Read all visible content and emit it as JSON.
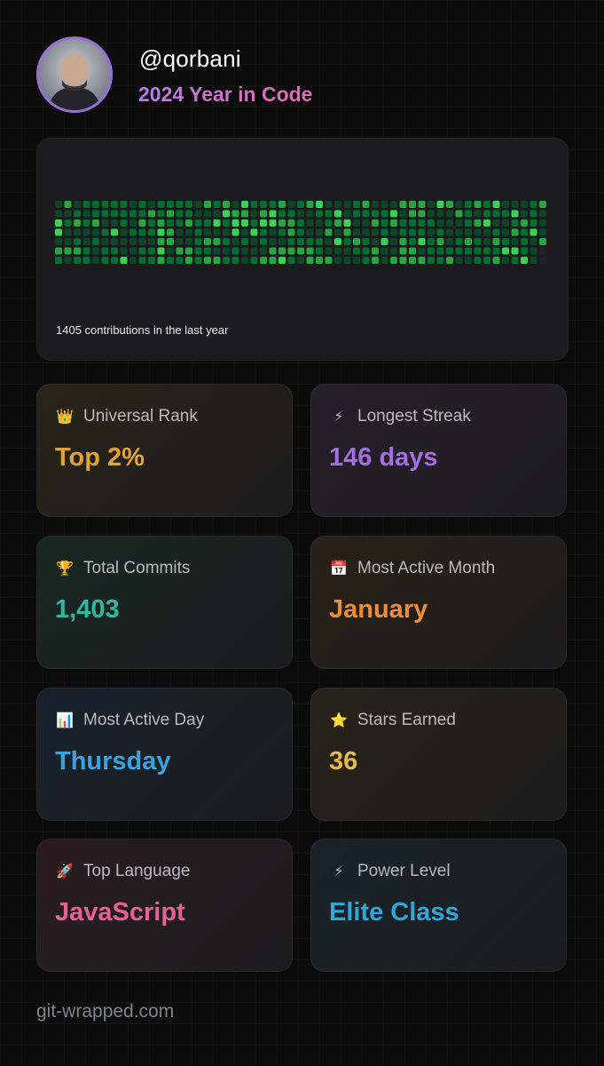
{
  "header": {
    "username": "@qorbani",
    "subtitle": "2024 Year in Code"
  },
  "contributions": {
    "summary": "1405 contributions in the last year",
    "accent_colors": [
      "#0e4429",
      "#006d32",
      "#26a641",
      "#39d353"
    ]
  },
  "stats": [
    {
      "id": "universal-rank",
      "icon": "crown-icon",
      "glyph": "👑",
      "title": "Universal Rank",
      "value": "Top 2%",
      "color": "#e3a235",
      "bg": "#2a2418"
    },
    {
      "id": "longest-streak",
      "icon": "lightning-icon",
      "glyph": "⚡",
      "title": "Longest Streak",
      "value": "146 days",
      "color": "#a46ee0",
      "bg": "#261f2c"
    },
    {
      "id": "total-commits",
      "icon": "trophy-icon",
      "glyph": "🏆",
      "title": "Total Commits",
      "value": "1,403",
      "color": "#2fb8a0",
      "bg": "#172822"
    },
    {
      "id": "most-active-month",
      "icon": "calendar-icon",
      "glyph": "📅",
      "title": "Most Active Month",
      "value": "January",
      "color": "#eb8d3b",
      "bg": "#2a2117"
    },
    {
      "id": "most-active-day",
      "icon": "bar-chart-icon",
      "glyph": "📊",
      "title": "Most Active Day",
      "value": "Thursday",
      "color": "#3aa2dc",
      "bg": "#17222c"
    },
    {
      "id": "stars-earned",
      "icon": "star-icon",
      "glyph": "⭐",
      "title": "Stars Earned",
      "value": "36",
      "color": "#e6b84a",
      "bg": "#29231a"
    },
    {
      "id": "top-language",
      "icon": "rocket-icon",
      "glyph": "🚀",
      "title": "Top Language",
      "value": "JavaScript",
      "color": "#e66193",
      "bg": "#2a1c20"
    },
    {
      "id": "power-level",
      "icon": "lightning-icon",
      "glyph": "⚡",
      "title": "Power Level",
      "value": "Elite Class",
      "color": "#2fa6d6",
      "bg": "#17242b"
    }
  ],
  "footer": {
    "site": "git-wrapped.com"
  }
}
